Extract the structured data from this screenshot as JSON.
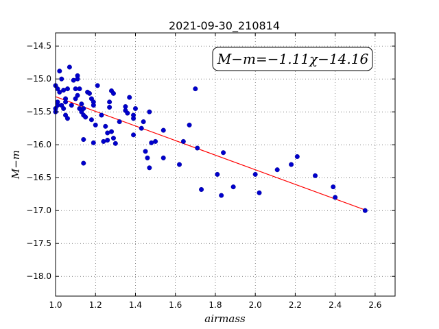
{
  "chart_data": {
    "type": "scatter",
    "title": "2021-09-30_210814",
    "xlabel": "airmass",
    "ylabel": "M−m",
    "xlim": [
      1.0,
      2.7
    ],
    "ylim": [
      -18.3,
      -14.3
    ],
    "y_inverted": true,
    "grid": true,
    "x_ticks": [
      "1.0",
      "1.2",
      "1.4",
      "1.6",
      "1.8",
      "2.0",
      "2.2",
      "2.4",
      "2.6"
    ],
    "x_tick_values": [
      1.0,
      1.2,
      1.4,
      1.6,
      1.8,
      2.0,
      2.2,
      2.4,
      2.6
    ],
    "y_ticks": [
      "−14.5",
      "−15.0",
      "−15.5",
      "−16.0",
      "−16.5",
      "−17.0",
      "−17.5",
      "−18.0"
    ],
    "y_tick_values": [
      -14.5,
      -15.0,
      -15.5,
      -16.0,
      -16.5,
      -17.0,
      -17.5,
      -18.0
    ],
    "annotation": "M−m=−1.11χ−14.16",
    "point_color": "#0000cc",
    "fit_color": "#ff0000",
    "fit": {
      "slope": -1.11,
      "intercept": -14.16,
      "x_range": [
        1.0,
        2.55
      ]
    },
    "points": [
      [
        1.0,
        -15.45
      ],
      [
        1.0,
        -15.5
      ],
      [
        1.0,
        -15.1
      ],
      [
        1.01,
        -15.15
      ],
      [
        1.01,
        -15.35
      ],
      [
        1.01,
        -15.4
      ],
      [
        1.02,
        -14.88
      ],
      [
        1.02,
        -15.2
      ],
      [
        1.03,
        -15.0
      ],
      [
        1.03,
        -15.4
      ],
      [
        1.04,
        -15.17
      ],
      [
        1.04,
        -15.45
      ],
      [
        1.05,
        -15.3
      ],
      [
        1.05,
        -15.55
      ],
      [
        1.05,
        -15.35
      ],
      [
        1.06,
        -15.15
      ],
      [
        1.06,
        -15.6
      ],
      [
        1.07,
        -14.82
      ],
      [
        1.08,
        -15.4
      ],
      [
        1.09,
        -15.02
      ],
      [
        1.1,
        -15.15
      ],
      [
        1.1,
        -15.3
      ],
      [
        1.11,
        -14.95
      ],
      [
        1.11,
        -15.0
      ],
      [
        1.11,
        -15.25
      ],
      [
        1.12,
        -15.45
      ],
      [
        1.12,
        -15.15
      ],
      [
        1.13,
        -15.38
      ],
      [
        1.13,
        -15.5
      ],
      [
        1.14,
        -15.45
      ],
      [
        1.14,
        -15.55
      ],
      [
        1.15,
        -15.58
      ],
      [
        1.14,
        -15.92
      ],
      [
        1.14,
        -16.28
      ],
      [
        1.16,
        -15.2
      ],
      [
        1.17,
        -15.22
      ],
      [
        1.18,
        -15.3
      ],
      [
        1.18,
        -15.62
      ],
      [
        1.19,
        -15.35
      ],
      [
        1.19,
        -15.4
      ],
      [
        1.19,
        -15.97
      ],
      [
        1.2,
        -15.7
      ],
      [
        1.21,
        -15.1
      ],
      [
        1.23,
        -15.55
      ],
      [
        1.24,
        -15.95
      ],
      [
        1.25,
        -15.72
      ],
      [
        1.26,
        -15.82
      ],
      [
        1.26,
        -15.93
      ],
      [
        1.27,
        -15.35
      ],
      [
        1.27,
        -15.43
      ],
      [
        1.28,
        -15.18
      ],
      [
        1.28,
        -15.8
      ],
      [
        1.29,
        -15.22
      ],
      [
        1.29,
        -15.9
      ],
      [
        1.3,
        -15.98
      ],
      [
        1.32,
        -15.65
      ],
      [
        1.35,
        -15.42
      ],
      [
        1.35,
        -15.48
      ],
      [
        1.36,
        -15.52
      ],
      [
        1.37,
        -15.28
      ],
      [
        1.39,
        -15.55
      ],
      [
        1.39,
        -15.6
      ],
      [
        1.39,
        -15.85
      ],
      [
        1.4,
        -15.45
      ],
      [
        1.43,
        -15.75
      ],
      [
        1.44,
        -15.65
      ],
      [
        1.45,
        -16.1
      ],
      [
        1.46,
        -16.2
      ],
      [
        1.47,
        -16.35
      ],
      [
        1.47,
        -15.5
      ],
      [
        1.48,
        -15.97
      ],
      [
        1.5,
        -15.95
      ],
      [
        1.54,
        -15.78
      ],
      [
        1.54,
        -16.2
      ],
      [
        1.62,
        -16.3
      ],
      [
        1.64,
        -15.95
      ],
      [
        1.67,
        -15.7
      ],
      [
        1.7,
        -15.15
      ],
      [
        1.71,
        -16.05
      ],
      [
        1.73,
        -16.68
      ],
      [
        1.81,
        -16.45
      ],
      [
        1.83,
        -16.77
      ],
      [
        1.84,
        -16.12
      ],
      [
        1.89,
        -16.64
      ],
      [
        2.0,
        -16.45
      ],
      [
        2.02,
        -16.73
      ],
      [
        2.11,
        -16.38
      ],
      [
        2.18,
        -16.3
      ],
      [
        2.21,
        -16.18
      ],
      [
        2.3,
        -16.47
      ],
      [
        2.39,
        -16.64
      ],
      [
        2.4,
        -16.8
      ],
      [
        2.55,
        -17.0
      ]
    ]
  }
}
